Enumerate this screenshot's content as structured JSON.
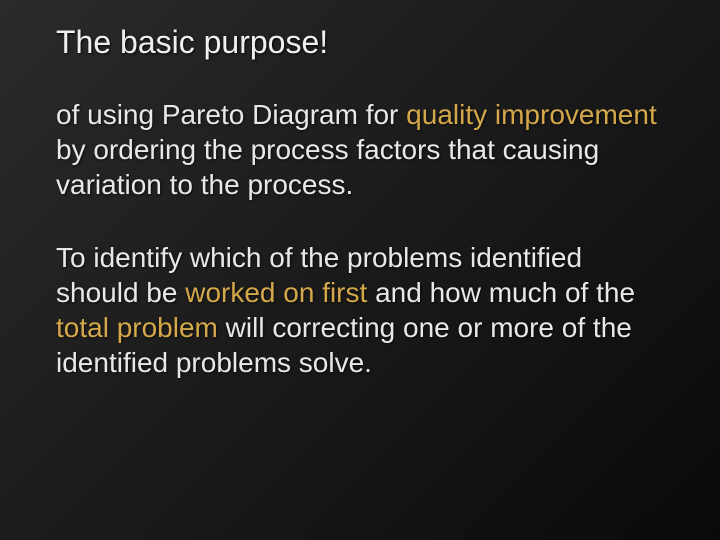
{
  "slide": {
    "title": "The basic purpose!",
    "paragraph1": {
      "part1": "of using Pareto Diagram  for ",
      "emph1": "quality improvement",
      "part2": " by ordering the process factors that causing variation to the process."
    },
    "paragraph2": {
      "part1": "To identify which of the problems identified  should be ",
      "emph1": "worked on first",
      "part2": " and how much of the ",
      "emph2": "total problem",
      "part3": " will correcting one or more of the identified problems solve."
    },
    "colors": {
      "text": "#e8e8e8",
      "emphasis": "#d4a84a",
      "bg_start": "#2a2a2a",
      "bg_end": "#0a0a0a"
    },
    "typography": {
      "title_fontsize": 32,
      "body_fontsize": 28,
      "font_family": "Arial"
    }
  }
}
